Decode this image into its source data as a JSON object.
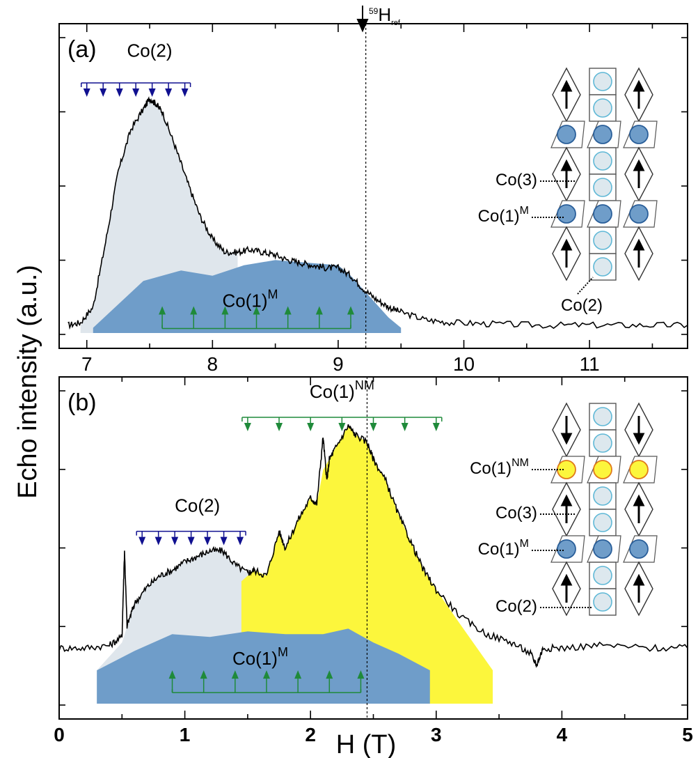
{
  "ylabel": "Echo intensity (a.u.)",
  "xlabel": "H (T)",
  "ref_label": "59",
  "ref_label_main": "H",
  "ref_label_sub": "ref",
  "chart_data": [
    {
      "panel_label": "(a)",
      "type": "line",
      "xlim": [
        6.78,
        11.78
      ],
      "ylim": [
        0,
        1
      ],
      "xticks": [
        7,
        8,
        9,
        10,
        11
      ],
      "ref_x": 9.22,
      "series": [
        {
          "x": [
            6.85,
            6.95,
            7.05,
            7.15,
            7.25,
            7.35,
            7.45,
            7.5,
            7.55,
            7.6,
            7.7,
            7.8,
            7.9,
            8.0,
            8.1,
            8.2,
            8.3,
            8.4,
            8.5,
            8.6,
            8.7,
            8.8,
            8.9,
            9.0,
            9.1,
            9.2,
            9.3,
            9.4,
            9.5,
            9.7,
            9.9,
            10.2,
            10.6,
            11.0,
            11.4,
            11.78
          ],
          "y": [
            0.03,
            0.04,
            0.1,
            0.35,
            0.62,
            0.78,
            0.86,
            0.9,
            0.88,
            0.85,
            0.72,
            0.58,
            0.45,
            0.36,
            0.31,
            0.31,
            0.32,
            0.31,
            0.3,
            0.28,
            0.27,
            0.26,
            0.25,
            0.25,
            0.22,
            0.17,
            0.13,
            0.1,
            0.08,
            0.05,
            0.04,
            0.035,
            0.03,
            0.03,
            0.03,
            0.03
          ]
        }
      ],
      "areas": [
        {
          "name": "Co(2)",
          "color": "#dfe6ec",
          "x": [
            6.95,
            7.05,
            7.15,
            7.25,
            7.35,
            7.45,
            7.5,
            7.55,
            7.6,
            7.7,
            7.8,
            7.9,
            8.0,
            8.1,
            8.2
          ],
          "y": [
            0.03,
            0.1,
            0.35,
            0.62,
            0.78,
            0.86,
            0.9,
            0.88,
            0.85,
            0.72,
            0.58,
            0.45,
            0.36,
            0.31,
            0.31
          ]
        },
        {
          "name": "Co(1)M",
          "color": "#6f9dc9",
          "x": [
            7.05,
            7.45,
            7.75,
            8.0,
            8.25,
            8.5,
            8.75,
            9.0,
            9.1,
            9.25,
            9.4,
            9.5
          ],
          "y": [
            0.02,
            0.2,
            0.24,
            0.22,
            0.26,
            0.28,
            0.27,
            0.26,
            0.22,
            0.14,
            0.06,
            0.02
          ]
        }
      ],
      "annotations": [
        {
          "text": "Co(2)",
          "sup": "",
          "x": 7.5,
          "y": 1.06
        },
        {
          "text": "Co(1)",
          "sup": "M",
          "x": 8.3,
          "y": 0.1
        }
      ],
      "markers": [
        {
          "kind": "down",
          "color": "#101090",
          "x": [
            7.0,
            7.13,
            7.26,
            7.39,
            7.52,
            7.65,
            7.78
          ],
          "y": 0.96
        },
        {
          "kind": "up",
          "color": "#1f8a3a",
          "x": [
            7.6,
            7.85,
            8.1,
            8.35,
            8.6,
            8.85,
            9.1
          ],
          "y": 0.06
        }
      ]
    },
    {
      "panel_label": "(b)",
      "type": "line",
      "xlim": [
        0,
        5
      ],
      "ylim": [
        0,
        1
      ],
      "xticks": [
        0,
        1,
        2,
        3,
        4,
        5
      ],
      "ref_x": 2.45,
      "series": [
        {
          "x": [
            0,
            0.2,
            0.4,
            0.5,
            0.52,
            0.54,
            0.6,
            0.7,
            0.8,
            0.9,
            1.0,
            1.1,
            1.2,
            1.3,
            1.4,
            1.5,
            1.55,
            1.65,
            1.75,
            1.8,
            1.9,
            2.0,
            2.05,
            2.1,
            2.13,
            2.15,
            2.2,
            2.3,
            2.35,
            2.45,
            2.5,
            2.6,
            2.7,
            2.8,
            2.9,
            3.0,
            3.2,
            3.4,
            3.6,
            3.75,
            3.8,
            3.85,
            4.0,
            4.3,
            4.7,
            5.0
          ],
          "y": [
            0.2,
            0.2,
            0.21,
            0.24,
            0.55,
            0.28,
            0.36,
            0.42,
            0.46,
            0.48,
            0.51,
            0.53,
            0.55,
            0.55,
            0.5,
            0.47,
            0.48,
            0.46,
            0.62,
            0.56,
            0.66,
            0.74,
            0.72,
            0.96,
            0.8,
            0.88,
            0.92,
            1.0,
            0.97,
            0.94,
            0.88,
            0.8,
            0.68,
            0.58,
            0.48,
            0.41,
            0.31,
            0.25,
            0.22,
            0.18,
            0.14,
            0.2,
            0.2,
            0.21,
            0.2,
            0.2
          ]
        }
      ],
      "areas": [
        {
          "name": "Co(2)",
          "color": "#dfe6ec",
          "x": [
            0.3,
            0.5,
            0.6,
            0.7,
            0.8,
            0.9,
            1.0,
            1.1,
            1.2,
            1.3,
            1.4,
            1.5,
            1.62
          ],
          "y": [
            0.12,
            0.22,
            0.36,
            0.42,
            0.46,
            0.48,
            0.51,
            0.53,
            0.55,
            0.55,
            0.5,
            0.47,
            0.33
          ]
        },
        {
          "name": "Co(1)NM",
          "color": "#fcf63c",
          "x": [
            1.45,
            1.55,
            1.65,
            1.75,
            1.8,
            1.9,
            2.0,
            2.05,
            2.1,
            2.15,
            2.2,
            2.3,
            2.35,
            2.45,
            2.5,
            2.6,
            2.7,
            2.8,
            2.9,
            3.0,
            3.2,
            3.45
          ],
          "y": [
            0.44,
            0.48,
            0.46,
            0.62,
            0.56,
            0.66,
            0.74,
            0.72,
            0.84,
            0.88,
            0.92,
            1.0,
            0.97,
            0.94,
            0.88,
            0.8,
            0.68,
            0.58,
            0.48,
            0.41,
            0.28,
            0.12
          ]
        },
        {
          "name": "Co(1)M",
          "color": "#6f9dc9",
          "x": [
            0.3,
            0.6,
            0.9,
            1.2,
            1.5,
            1.8,
            2.1,
            2.3,
            2.5,
            2.7,
            2.95
          ],
          "y": [
            0.12,
            0.19,
            0.25,
            0.24,
            0.26,
            0.25,
            0.25,
            0.27,
            0.22,
            0.18,
            0.12
          ]
        }
      ],
      "annotations": [
        {
          "text": "Co(2)",
          "sup": "",
          "x": 1.1,
          "y": 0.69
        },
        {
          "text": "Co(1)",
          "sup": "NM",
          "x": 2.25,
          "y": 1.1
        },
        {
          "text": "Co(1)",
          "sup": "M",
          "x": 1.6,
          "y": 0.14
        }
      ],
      "markers": [
        {
          "kind": "down",
          "color": "#101090",
          "x": [
            0.66,
            0.79,
            0.92,
            1.05,
            1.18,
            1.31,
            1.44
          ],
          "y": 0.62
        },
        {
          "kind": "down",
          "color": "#1f8a3a",
          "x": [
            1.5,
            1.75,
            2.0,
            2.25,
            2.5,
            2.75,
            3.0
          ],
          "y": 1.03
        },
        {
          "kind": "up",
          "color": "#1f8a3a",
          "x": [
            0.9,
            1.15,
            1.4,
            1.65,
            1.9,
            2.15,
            2.4
          ],
          "y": 0.08
        }
      ]
    }
  ],
  "inset_a": {
    "labels": [
      {
        "text": "Co(3)",
        "sup": ""
      },
      {
        "text": "Co(1)",
        "sup": "M"
      },
      {
        "text": "Co(2)",
        "sup": ""
      }
    ],
    "spins": [
      "up",
      "up"
    ],
    "row_colors": [
      "#6f9dc9",
      "#6f9dc9"
    ]
  },
  "inset_b": {
    "labels": [
      {
        "text": "Co(1)",
        "sup": "NM"
      },
      {
        "text": "Co(3)",
        "sup": ""
      },
      {
        "text": "Co(1)",
        "sup": "M"
      },
      {
        "text": "Co(2)",
        "sup": ""
      }
    ],
    "spins": [
      "down",
      "up",
      "up"
    ],
    "row_colors": [
      "#fcf63c",
      "#6f9dc9"
    ]
  }
}
